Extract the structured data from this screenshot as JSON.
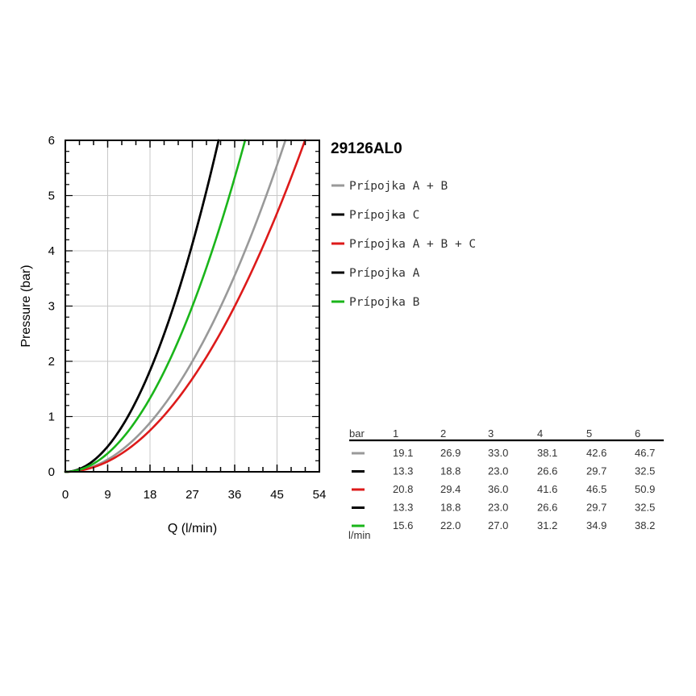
{
  "chart_data": {
    "type": "line",
    "title": "29126AL0",
    "xlabel": "Q (l/min)",
    "ylabel": "Pressure (bar)",
    "xlim": [
      0,
      54
    ],
    "ylim": [
      0,
      6
    ],
    "x_ticks": [
      "0",
      "9",
      "18",
      "27",
      "36",
      "45",
      "54"
    ],
    "y_ticks": [
      "0",
      "1",
      "2",
      "3",
      "4",
      "5",
      "6"
    ],
    "grid": true,
    "legend_position": "right",
    "pressures": [
      1,
      2,
      3,
      4,
      5,
      6
    ],
    "series": [
      {
        "name": "Prípojka A + B",
        "color": "#999999",
        "flow": [
          19.1,
          26.9,
          33.0,
          38.1,
          42.6,
          46.7
        ]
      },
      {
        "name": "Prípojka C",
        "color": "#000000",
        "flow": [
          13.3,
          18.8,
          23.0,
          26.6,
          29.7,
          32.5
        ]
      },
      {
        "name": "Prípojka A + B + C",
        "color": "#dd1a1a",
        "flow": [
          20.8,
          29.4,
          36.0,
          41.6,
          46.5,
          50.9
        ]
      },
      {
        "name": "Prípojka A",
        "color": "#000000",
        "flow": [
          13.3,
          18.8,
          23.0,
          26.6,
          29.7,
          32.5
        ]
      },
      {
        "name": "Prípojka B",
        "color": "#1ab51a",
        "flow": [
          15.6,
          22.0,
          27.0,
          31.2,
          34.9,
          38.2
        ]
      }
    ],
    "table": {
      "header_label": "bar",
      "unit_label": "l/min",
      "columns": [
        "1",
        "2",
        "3",
        "4",
        "5",
        "6"
      ],
      "rows": [
        [
          "19.1",
          "26.9",
          "33.0",
          "38.1",
          "42.6",
          "46.7"
        ],
        [
          "13.3",
          "18.8",
          "23.0",
          "26.6",
          "29.7",
          "32.5"
        ],
        [
          "20.8",
          "29.4",
          "36.0",
          "41.6",
          "46.5",
          "50.9"
        ],
        [
          "13.3",
          "18.8",
          "23.0",
          "26.6",
          "29.7",
          "32.5"
        ],
        [
          "15.6",
          "22.0",
          "27.0",
          "31.2",
          "34.9",
          "38.2"
        ]
      ]
    }
  }
}
